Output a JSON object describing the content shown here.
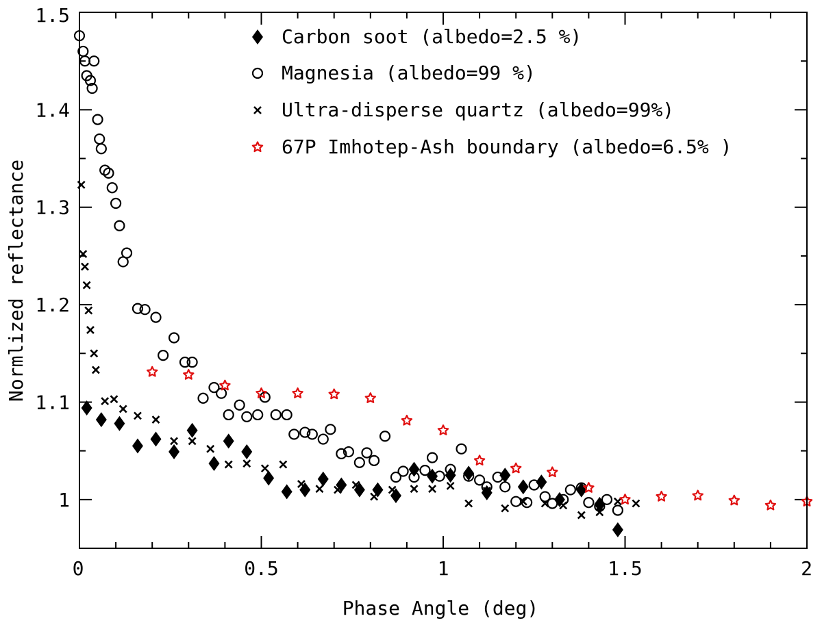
{
  "chart_data": {
    "type": "scatter",
    "title": "",
    "xlabel": "Phase Angle (deg)",
    "ylabel": "Normlized reflectance",
    "xlim": [
      0,
      2
    ],
    "ylim": [
      0.95,
      1.5
    ],
    "x_ticks": [
      0,
      0.5,
      1,
      1.5,
      2
    ],
    "x_tick_labels": [
      "0",
      "0.5",
      "1",
      "1.5",
      "2"
    ],
    "y_ticks": [
      1.0,
      1.1,
      1.2,
      1.3,
      1.4,
      1.5
    ],
    "y_tick_labels": [
      "1",
      "1.1",
      "1.2",
      "1.3",
      "1.4",
      "1.5"
    ],
    "legend_position": "top-center",
    "series": [
      {
        "name": "Carbon soot (albedo=2.5 %)",
        "marker": "diamond",
        "color": "#000000",
        "x": [
          0.02,
          0.06,
          0.11,
          0.16,
          0.21,
          0.26,
          0.31,
          0.37,
          0.41,
          0.46,
          0.52,
          0.57,
          0.62,
          0.67,
          0.72,
          0.77,
          0.82,
          0.87,
          0.92,
          0.97,
          1.02,
          1.07,
          1.12,
          1.17,
          1.22,
          1.27,
          1.32,
          1.38,
          1.43,
          1.48
        ],
        "y": [
          1.094,
          1.082,
          1.078,
          1.055,
          1.062,
          1.049,
          1.071,
          1.037,
          1.06,
          1.049,
          1.022,
          1.008,
          1.01,
          1.021,
          1.015,
          1.01,
          1.01,
          1.004,
          1.031,
          1.024,
          1.025,
          1.027,
          1.007,
          1.025,
          1.013,
          1.018,
          1.0,
          1.01,
          0.995,
          0.969
        ]
      },
      {
        "name": "Magnesia (albedo=99 %)",
        "marker": "circle",
        "color": "#000000",
        "x": [
          0.0,
          0.01,
          0.015,
          0.02,
          0.03,
          0.035,
          0.04,
          0.05,
          0.055,
          0.06,
          0.07,
          0.08,
          0.09,
          0.1,
          0.11,
          0.12,
          0.13,
          0.16,
          0.18,
          0.21,
          0.23,
          0.26,
          0.29,
          0.31,
          0.34,
          0.37,
          0.39,
          0.41,
          0.44,
          0.46,
          0.49,
          0.51,
          0.54,
          0.57,
          0.59,
          0.62,
          0.64,
          0.67,
          0.69,
          0.72,
          0.74,
          0.77,
          0.79,
          0.81,
          0.84,
          0.87,
          0.89,
          0.92,
          0.95,
          0.97,
          0.99,
          1.02,
          1.05,
          1.07,
          1.1,
          1.12,
          1.15,
          1.17,
          1.2,
          1.23,
          1.25,
          1.28,
          1.3,
          1.33,
          1.35,
          1.38,
          1.4,
          1.43,
          1.45,
          1.48
        ],
        "y": [
          1.476,
          1.46,
          1.45,
          1.435,
          1.43,
          1.422,
          1.45,
          1.39,
          1.37,
          1.36,
          1.338,
          1.335,
          1.32,
          1.304,
          1.281,
          1.244,
          1.253,
          1.196,
          1.195,
          1.187,
          1.148,
          1.166,
          1.141,
          1.141,
          1.104,
          1.115,
          1.109,
          1.087,
          1.097,
          1.085,
          1.087,
          1.105,
          1.087,
          1.087,
          1.067,
          1.069,
          1.067,
          1.062,
          1.072,
          1.047,
          1.049,
          1.038,
          1.048,
          1.04,
          1.065,
          1.023,
          1.029,
          1.023,
          1.03,
          1.043,
          1.024,
          1.031,
          1.052,
          1.024,
          1.02,
          1.013,
          1.023,
          1.013,
          0.998,
          0.997,
          1.015,
          1.003,
          0.996,
          1.0,
          1.01,
          1.012,
          0.997,
          0.993,
          1.0,
          0.989
        ]
      },
      {
        "name": "Ultra-disperse quartz (albedo=99%)",
        "marker": "x",
        "color": "#000000",
        "x": [
          0.005,
          0.01,
          0.015,
          0.02,
          0.025,
          0.03,
          0.04,
          0.045,
          0.07,
          0.095,
          0.12,
          0.16,
          0.21,
          0.26,
          0.31,
          0.36,
          0.41,
          0.46,
          0.51,
          0.56,
          0.61,
          0.66,
          0.71,
          0.76,
          0.81,
          0.86,
          0.92,
          0.97,
          1.02,
          1.07,
          1.12,
          1.17,
          1.22,
          1.28,
          1.33,
          1.38,
          1.43,
          1.48,
          1.53
        ],
        "y": [
          1.323,
          1.252,
          1.239,
          1.22,
          1.194,
          1.174,
          1.15,
          1.133,
          1.101,
          1.103,
          1.093,
          1.086,
          1.082,
          1.06,
          1.06,
          1.052,
          1.036,
          1.037,
          1.032,
          1.036,
          1.016,
          1.011,
          1.01,
          1.015,
          1.003,
          1.01,
          1.011,
          1.011,
          1.014,
          0.996,
          1.009,
          0.991,
          0.998,
          0.996,
          0.994,
          0.984,
          0.987,
          0.998,
          0.996
        ]
      },
      {
        "name": "67P Imhotep-Ash boundary (albedo=6.5% )",
        "marker": "star",
        "color": "#e01010",
        "x": [
          0.2,
          0.3,
          0.4,
          0.5,
          0.6,
          0.7,
          0.8,
          0.9,
          1.0,
          1.1,
          1.2,
          1.3,
          1.4,
          1.5,
          1.6,
          1.7,
          1.8,
          1.9,
          2.0
        ],
        "y": [
          1.131,
          1.128,
          1.117,
          1.109,
          1.109,
          1.108,
          1.104,
          1.081,
          1.071,
          1.04,
          1.032,
          1.028,
          1.012,
          1.0,
          1.003,
          1.004,
          0.999,
          0.994,
          0.998
        ]
      }
    ]
  }
}
